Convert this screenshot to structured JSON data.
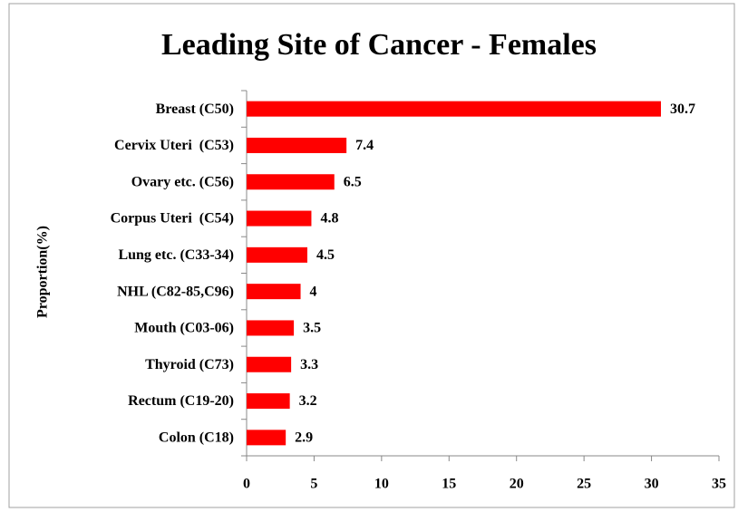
{
  "chart_data": {
    "type": "bar",
    "orientation": "horizontal",
    "title": "Leading Site of Cancer - Females",
    "y_label": "Proportion(%)",
    "categories": [
      "Breast (C50)",
      "Cervix Uteri  (C53)",
      "Ovary etc. (C56)",
      "Corpus Uteri  (C54)",
      "Lung etc. (C33-34)",
      "NHL (C82-85,C96)",
      "Mouth (C03-06)",
      "Thyroid (C73)",
      "Rectum (C19-20)",
      "Colon (C18)"
    ],
    "values": [
      30.7,
      7.4,
      6.5,
      4.8,
      4.5,
      4,
      3.5,
      3.3,
      3.2,
      2.9
    ],
    "color": "#ff0000",
    "xlim": [
      0,
      35
    ],
    "xticks": [
      0,
      5,
      10,
      15,
      20,
      25,
      30,
      35
    ],
    "grid": false
  }
}
